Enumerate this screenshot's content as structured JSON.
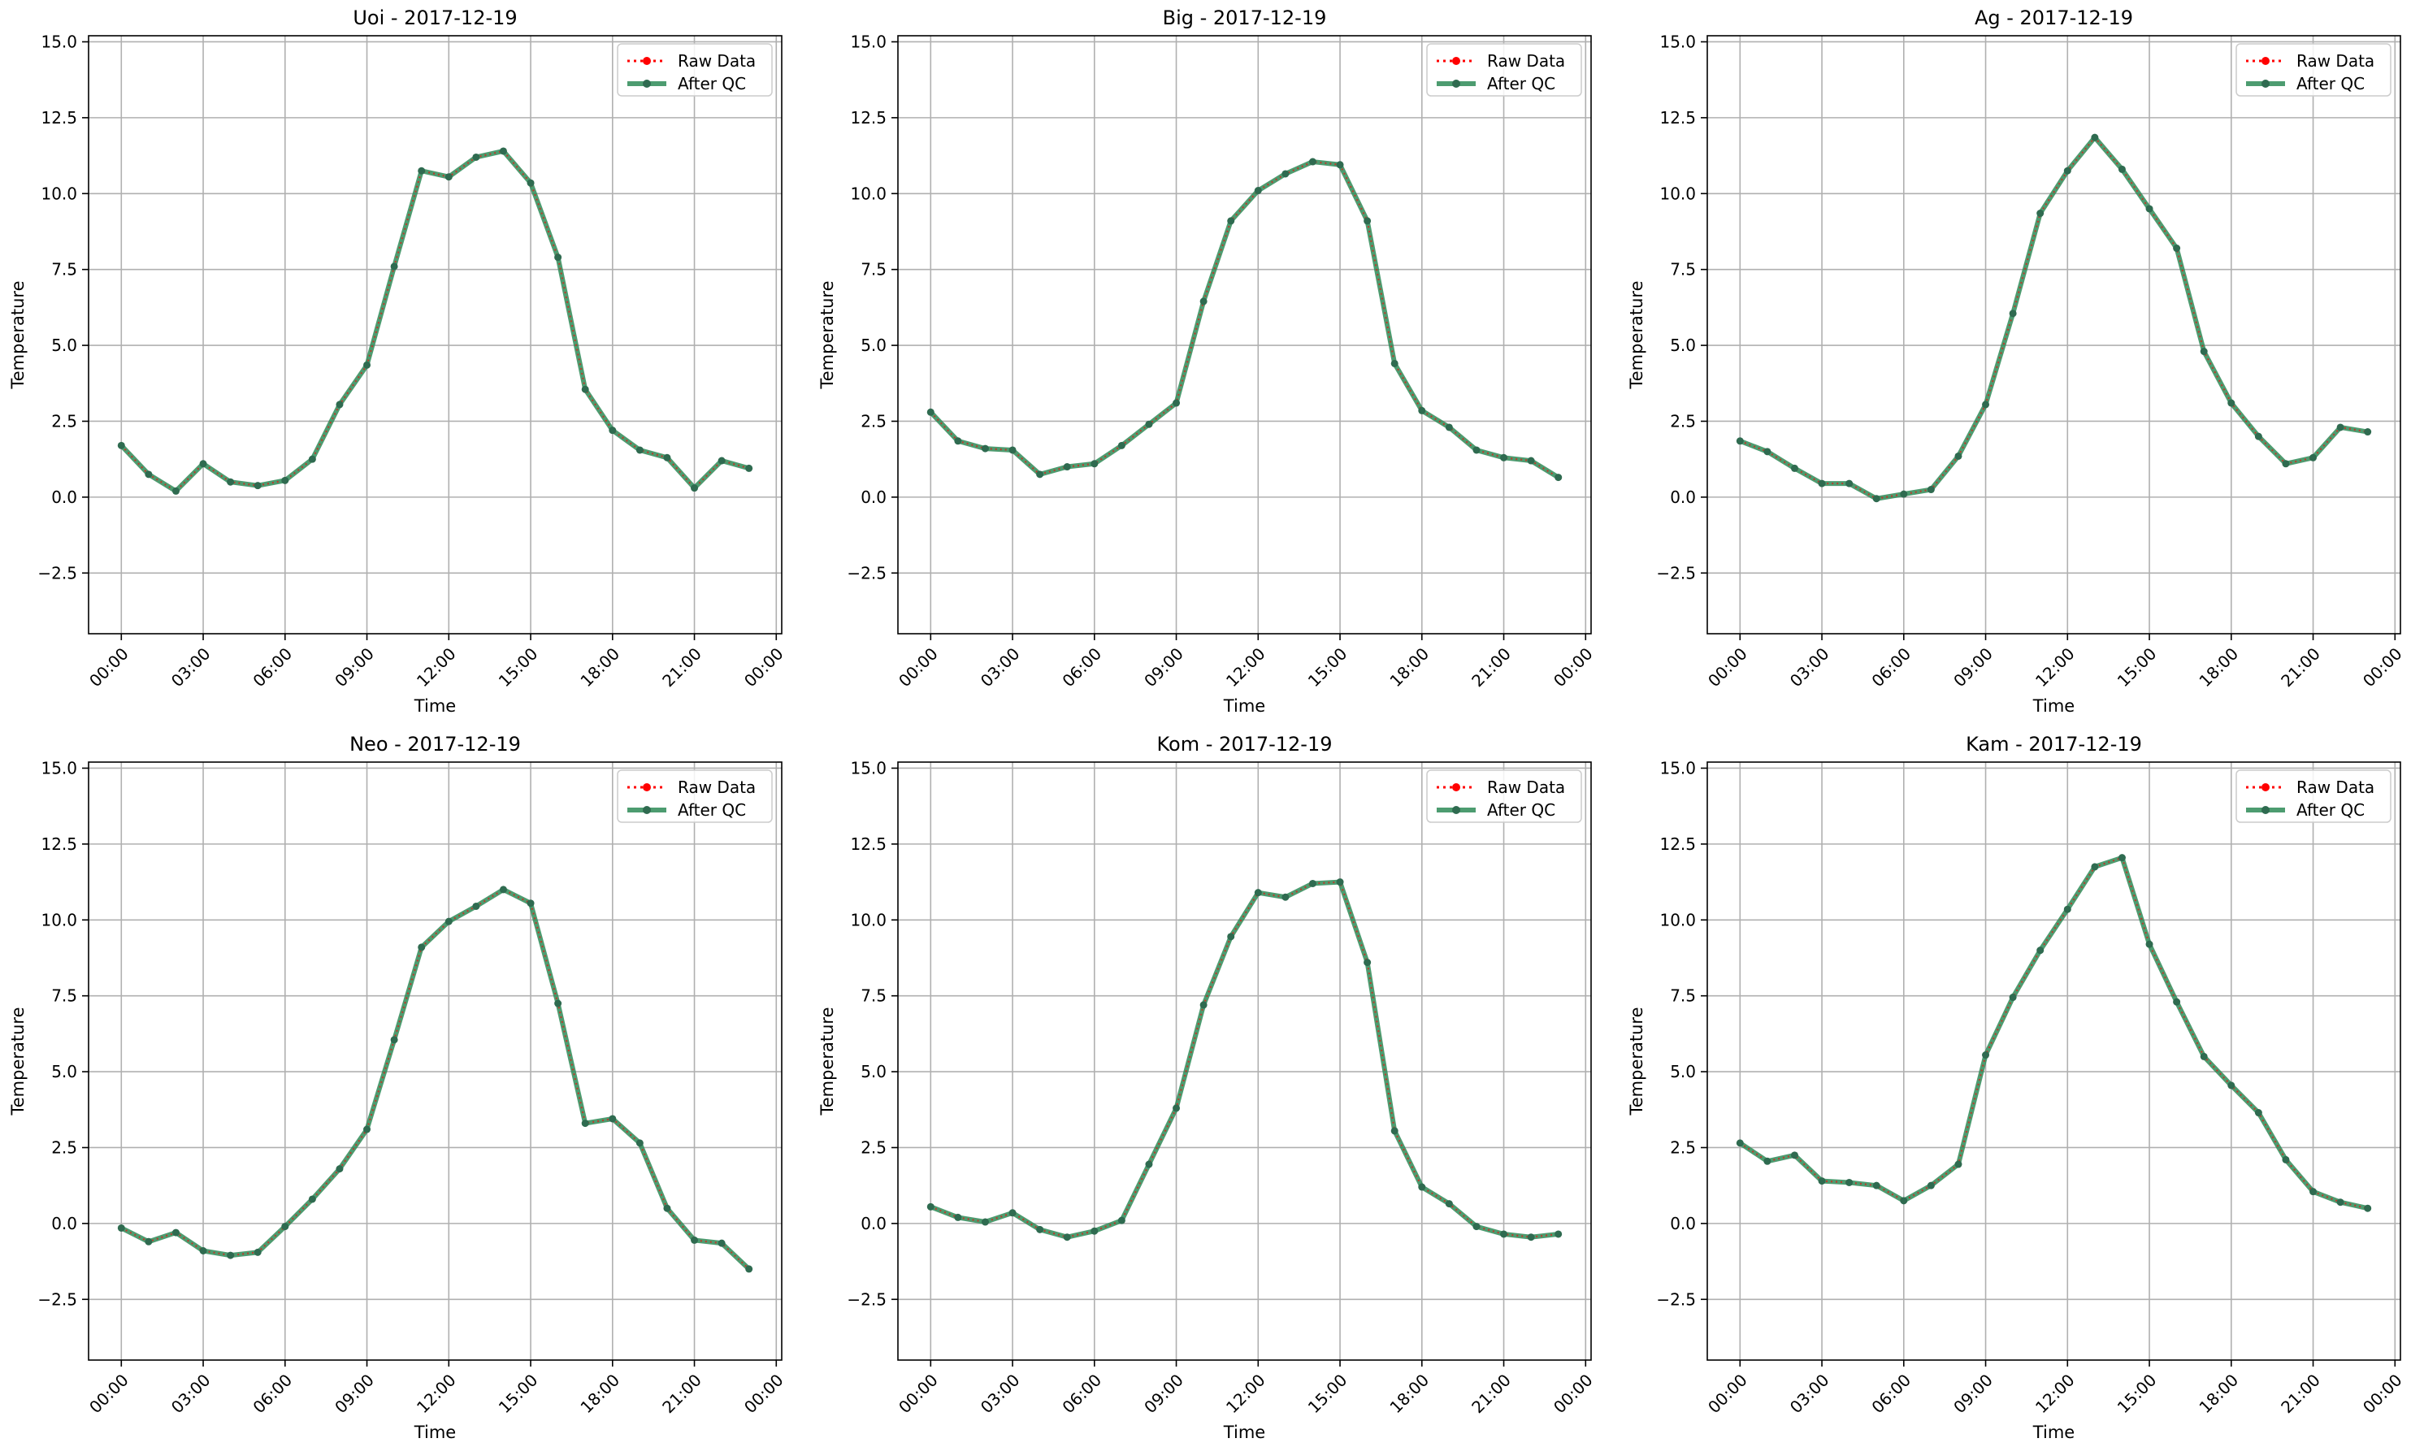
{
  "figure": {
    "legend_labels": [
      "Raw Data",
      "After QC"
    ],
    "colors": {
      "raw": "#ff0000",
      "qc": "#2e8b57",
      "grid": "#b0b0b0",
      "axis": "#000000"
    }
  },
  "chart_data": [
    {
      "type": "line",
      "title": "Uoi - 2017-12-19",
      "xlabel": "Time",
      "ylabel": "Temperature",
      "x": [
        "00:00",
        "01:00",
        "02:00",
        "03:00",
        "04:00",
        "05:00",
        "06:00",
        "07:00",
        "08:00",
        "09:00",
        "10:00",
        "11:00",
        "12:00",
        "13:00",
        "14:00",
        "15:00",
        "16:00",
        "17:00",
        "18:00",
        "19:00",
        "20:00",
        "21:00",
        "22:00",
        "23:00"
      ],
      "xticks": [
        "00:00",
        "03:00",
        "06:00",
        "09:00",
        "12:00",
        "15:00",
        "18:00",
        "21:00",
        "00:00"
      ],
      "yticks": [
        "−2.5",
        "0.0",
        "2.5",
        "5.0",
        "7.5",
        "10.0",
        "12.5",
        "15.0"
      ],
      "ylim": [
        -4.5,
        15.2
      ],
      "xlim_hours": [
        -1.2,
        24.2
      ],
      "grid": true,
      "legend": "top-right",
      "series": [
        {
          "name": "Raw Data",
          "values": [
            1.7,
            0.75,
            0.2,
            1.1,
            0.5,
            0.38,
            0.55,
            1.25,
            3.05,
            4.35,
            7.6,
            10.75,
            10.55,
            11.2,
            11.4,
            10.35,
            7.9,
            3.55,
            2.2,
            1.55,
            1.3,
            0.3,
            1.2,
            0.95
          ]
        },
        {
          "name": "After QC",
          "values": [
            1.7,
            0.75,
            0.2,
            1.1,
            0.5,
            0.38,
            0.55,
            1.25,
            3.05,
            4.35,
            7.6,
            10.75,
            10.55,
            11.2,
            11.4,
            10.35,
            7.9,
            3.55,
            2.2,
            1.55,
            1.3,
            0.3,
            1.2,
            0.95
          ]
        }
      ]
    },
    {
      "type": "line",
      "title": "Big - 2017-12-19",
      "xlabel": "Time",
      "ylabel": "Temperature",
      "x": [
        "00:00",
        "01:00",
        "02:00",
        "03:00",
        "04:00",
        "05:00",
        "06:00",
        "07:00",
        "08:00",
        "09:00",
        "10:00",
        "11:00",
        "12:00",
        "13:00",
        "14:00",
        "15:00",
        "16:00",
        "17:00",
        "18:00",
        "19:00",
        "20:00",
        "21:00",
        "22:00",
        "23:00"
      ],
      "xticks": [
        "00:00",
        "03:00",
        "06:00",
        "09:00",
        "12:00",
        "15:00",
        "18:00",
        "21:00",
        "00:00"
      ],
      "yticks": [
        "−2.5",
        "0.0",
        "2.5",
        "5.0",
        "7.5",
        "10.0",
        "12.5",
        "15.0"
      ],
      "ylim": [
        -4.5,
        15.2
      ],
      "xlim_hours": [
        -1.2,
        24.2
      ],
      "grid": true,
      "legend": "top-right",
      "series": [
        {
          "name": "Raw Data",
          "values": [
            2.8,
            1.85,
            1.6,
            1.55,
            0.75,
            1.0,
            1.1,
            1.7,
            2.4,
            3.1,
            6.45,
            9.1,
            10.1,
            10.65,
            11.05,
            10.95,
            9.1,
            4.4,
            2.85,
            2.3,
            1.55,
            1.3,
            1.2,
            0.65
          ]
        },
        {
          "name": "After QC",
          "values": [
            2.8,
            1.85,
            1.6,
            1.55,
            0.75,
            1.0,
            1.1,
            1.7,
            2.4,
            3.1,
            6.45,
            9.1,
            10.1,
            10.65,
            11.05,
            10.95,
            9.1,
            4.4,
            2.85,
            2.3,
            1.55,
            1.3,
            1.2,
            0.65
          ]
        }
      ]
    },
    {
      "type": "line",
      "title": "Ag - 2017-12-19",
      "xlabel": "Time",
      "ylabel": "Temperature",
      "x": [
        "00:00",
        "01:00",
        "02:00",
        "03:00",
        "04:00",
        "05:00",
        "06:00",
        "07:00",
        "08:00",
        "09:00",
        "10:00",
        "11:00",
        "12:00",
        "13:00",
        "14:00",
        "15:00",
        "16:00",
        "17:00",
        "18:00",
        "19:00",
        "20:00",
        "21:00",
        "22:00",
        "23:00"
      ],
      "xticks": [
        "00:00",
        "03:00",
        "06:00",
        "09:00",
        "12:00",
        "15:00",
        "18:00",
        "21:00",
        "00:00"
      ],
      "yticks": [
        "−2.5",
        "0.0",
        "2.5",
        "5.0",
        "7.5",
        "10.0",
        "12.5",
        "15.0"
      ],
      "ylim": [
        -4.5,
        15.2
      ],
      "xlim_hours": [
        -1.2,
        24.2
      ],
      "grid": true,
      "legend": "top-right",
      "series": [
        {
          "name": "Raw Data",
          "values": [
            1.85,
            1.5,
            0.95,
            0.45,
            0.45,
            -0.05,
            0.1,
            0.25,
            1.35,
            3.05,
            6.05,
            9.35,
            10.75,
            11.85,
            10.8,
            9.5,
            8.2,
            4.8,
            3.1,
            2.0,
            1.1,
            1.3,
            2.3,
            2.15
          ]
        },
        {
          "name": "After QC",
          "values": [
            1.85,
            1.5,
            0.95,
            0.45,
            0.45,
            -0.05,
            0.1,
            0.25,
            1.35,
            3.05,
            6.05,
            9.35,
            10.75,
            11.85,
            10.8,
            9.5,
            8.2,
            4.8,
            3.1,
            2.0,
            1.1,
            1.3,
            2.3,
            2.15
          ]
        }
      ]
    },
    {
      "type": "line",
      "title": "Neo - 2017-12-19",
      "xlabel": "Time",
      "ylabel": "Temperature",
      "x": [
        "00:00",
        "01:00",
        "02:00",
        "03:00",
        "04:00",
        "05:00",
        "06:00",
        "07:00",
        "08:00",
        "09:00",
        "10:00",
        "11:00",
        "12:00",
        "13:00",
        "14:00",
        "15:00",
        "16:00",
        "17:00",
        "18:00",
        "19:00",
        "20:00",
        "21:00",
        "22:00",
        "23:00"
      ],
      "xticks": [
        "00:00",
        "03:00",
        "06:00",
        "09:00",
        "12:00",
        "15:00",
        "18:00",
        "21:00",
        "00:00"
      ],
      "yticks": [
        "−2.5",
        "0.0",
        "2.5",
        "5.0",
        "7.5",
        "10.0",
        "12.5",
        "15.0"
      ],
      "ylim": [
        -4.5,
        15.2
      ],
      "xlim_hours": [
        -1.2,
        24.2
      ],
      "grid": true,
      "legend": "top-right",
      "series": [
        {
          "name": "Raw Data",
          "values": [
            -0.15,
            -0.6,
            -0.3,
            -0.9,
            -1.05,
            -0.95,
            -0.1,
            0.8,
            1.8,
            3.1,
            6.05,
            9.1,
            9.95,
            10.45,
            11.0,
            10.55,
            7.25,
            3.3,
            3.45,
            2.65,
            0.5,
            -0.55,
            -0.65,
            -1.5
          ]
        },
        {
          "name": "After QC",
          "values": [
            -0.15,
            -0.6,
            -0.3,
            -0.9,
            -1.05,
            -0.95,
            -0.1,
            0.8,
            1.8,
            3.1,
            6.05,
            9.1,
            9.95,
            10.45,
            11.0,
            10.55,
            7.25,
            3.3,
            3.45,
            2.65,
            0.5,
            -0.55,
            -0.65,
            -1.5
          ]
        }
      ]
    },
    {
      "type": "line",
      "title": "Kom - 2017-12-19",
      "xlabel": "Time",
      "ylabel": "Temperature",
      "x": [
        "00:00",
        "01:00",
        "02:00",
        "03:00",
        "04:00",
        "05:00",
        "06:00",
        "07:00",
        "08:00",
        "09:00",
        "10:00",
        "11:00",
        "12:00",
        "13:00",
        "14:00",
        "15:00",
        "16:00",
        "17:00",
        "18:00",
        "19:00",
        "20:00",
        "21:00",
        "22:00",
        "23:00"
      ],
      "xticks": [
        "00:00",
        "03:00",
        "06:00",
        "09:00",
        "12:00",
        "15:00",
        "18:00",
        "21:00",
        "00:00"
      ],
      "yticks": [
        "−2.5",
        "0.0",
        "2.5",
        "5.0",
        "7.5",
        "10.0",
        "12.5",
        "15.0"
      ],
      "ylim": [
        -4.5,
        15.2
      ],
      "xlim_hours": [
        -1.2,
        24.2
      ],
      "grid": true,
      "legend": "top-right",
      "series": [
        {
          "name": "Raw Data",
          "values": [
            0.55,
            0.2,
            0.05,
            0.35,
            -0.2,
            -0.45,
            -0.25,
            0.1,
            1.95,
            3.8,
            7.2,
            9.45,
            10.9,
            10.75,
            11.2,
            11.25,
            8.6,
            3.05,
            1.2,
            0.65,
            -0.1,
            -0.35,
            -0.45,
            -0.35
          ]
        },
        {
          "name": "After QC",
          "values": [
            0.55,
            0.2,
            0.05,
            0.35,
            -0.2,
            -0.45,
            -0.25,
            0.1,
            1.95,
            3.8,
            7.2,
            9.45,
            10.9,
            10.75,
            11.2,
            11.25,
            8.6,
            3.05,
            1.2,
            0.65,
            -0.1,
            -0.35,
            -0.45,
            -0.35
          ]
        }
      ]
    },
    {
      "type": "line",
      "title": "Kam - 2017-12-19",
      "xlabel": "Time",
      "ylabel": "Temperature",
      "x": [
        "00:00",
        "01:00",
        "02:00",
        "03:00",
        "04:00",
        "05:00",
        "06:00",
        "07:00",
        "08:00",
        "09:00",
        "10:00",
        "11:00",
        "12:00",
        "13:00",
        "14:00",
        "15:00",
        "16:00",
        "17:00",
        "18:00",
        "19:00",
        "20:00",
        "21:00",
        "22:00",
        "23:00"
      ],
      "xticks": [
        "00:00",
        "03:00",
        "06:00",
        "09:00",
        "12:00",
        "15:00",
        "18:00",
        "21:00",
        "00:00"
      ],
      "yticks": [
        "−2.5",
        "0.0",
        "2.5",
        "5.0",
        "7.5",
        "10.0",
        "12.5",
        "15.0"
      ],
      "ylim": [
        -4.5,
        15.2
      ],
      "xlim_hours": [
        -1.2,
        24.2
      ],
      "grid": true,
      "legend": "top-right",
      "series": [
        {
          "name": "Raw Data",
          "values": [
            2.65,
            2.05,
            2.25,
            1.4,
            1.35,
            1.25,
            0.75,
            1.25,
            1.95,
            5.55,
            7.45,
            9.0,
            10.35,
            11.75,
            12.05,
            9.2,
            7.3,
            5.5,
            4.55,
            3.65,
            2.1,
            1.05,
            0.7,
            0.5
          ]
        },
        {
          "name": "After QC",
          "values": [
            2.65,
            2.05,
            2.25,
            1.4,
            1.35,
            1.25,
            0.75,
            1.25,
            1.95,
            5.55,
            7.45,
            9.0,
            10.35,
            11.75,
            12.05,
            9.2,
            7.3,
            5.5,
            4.55,
            3.65,
            2.1,
            1.05,
            0.7,
            0.5
          ]
        }
      ]
    }
  ]
}
